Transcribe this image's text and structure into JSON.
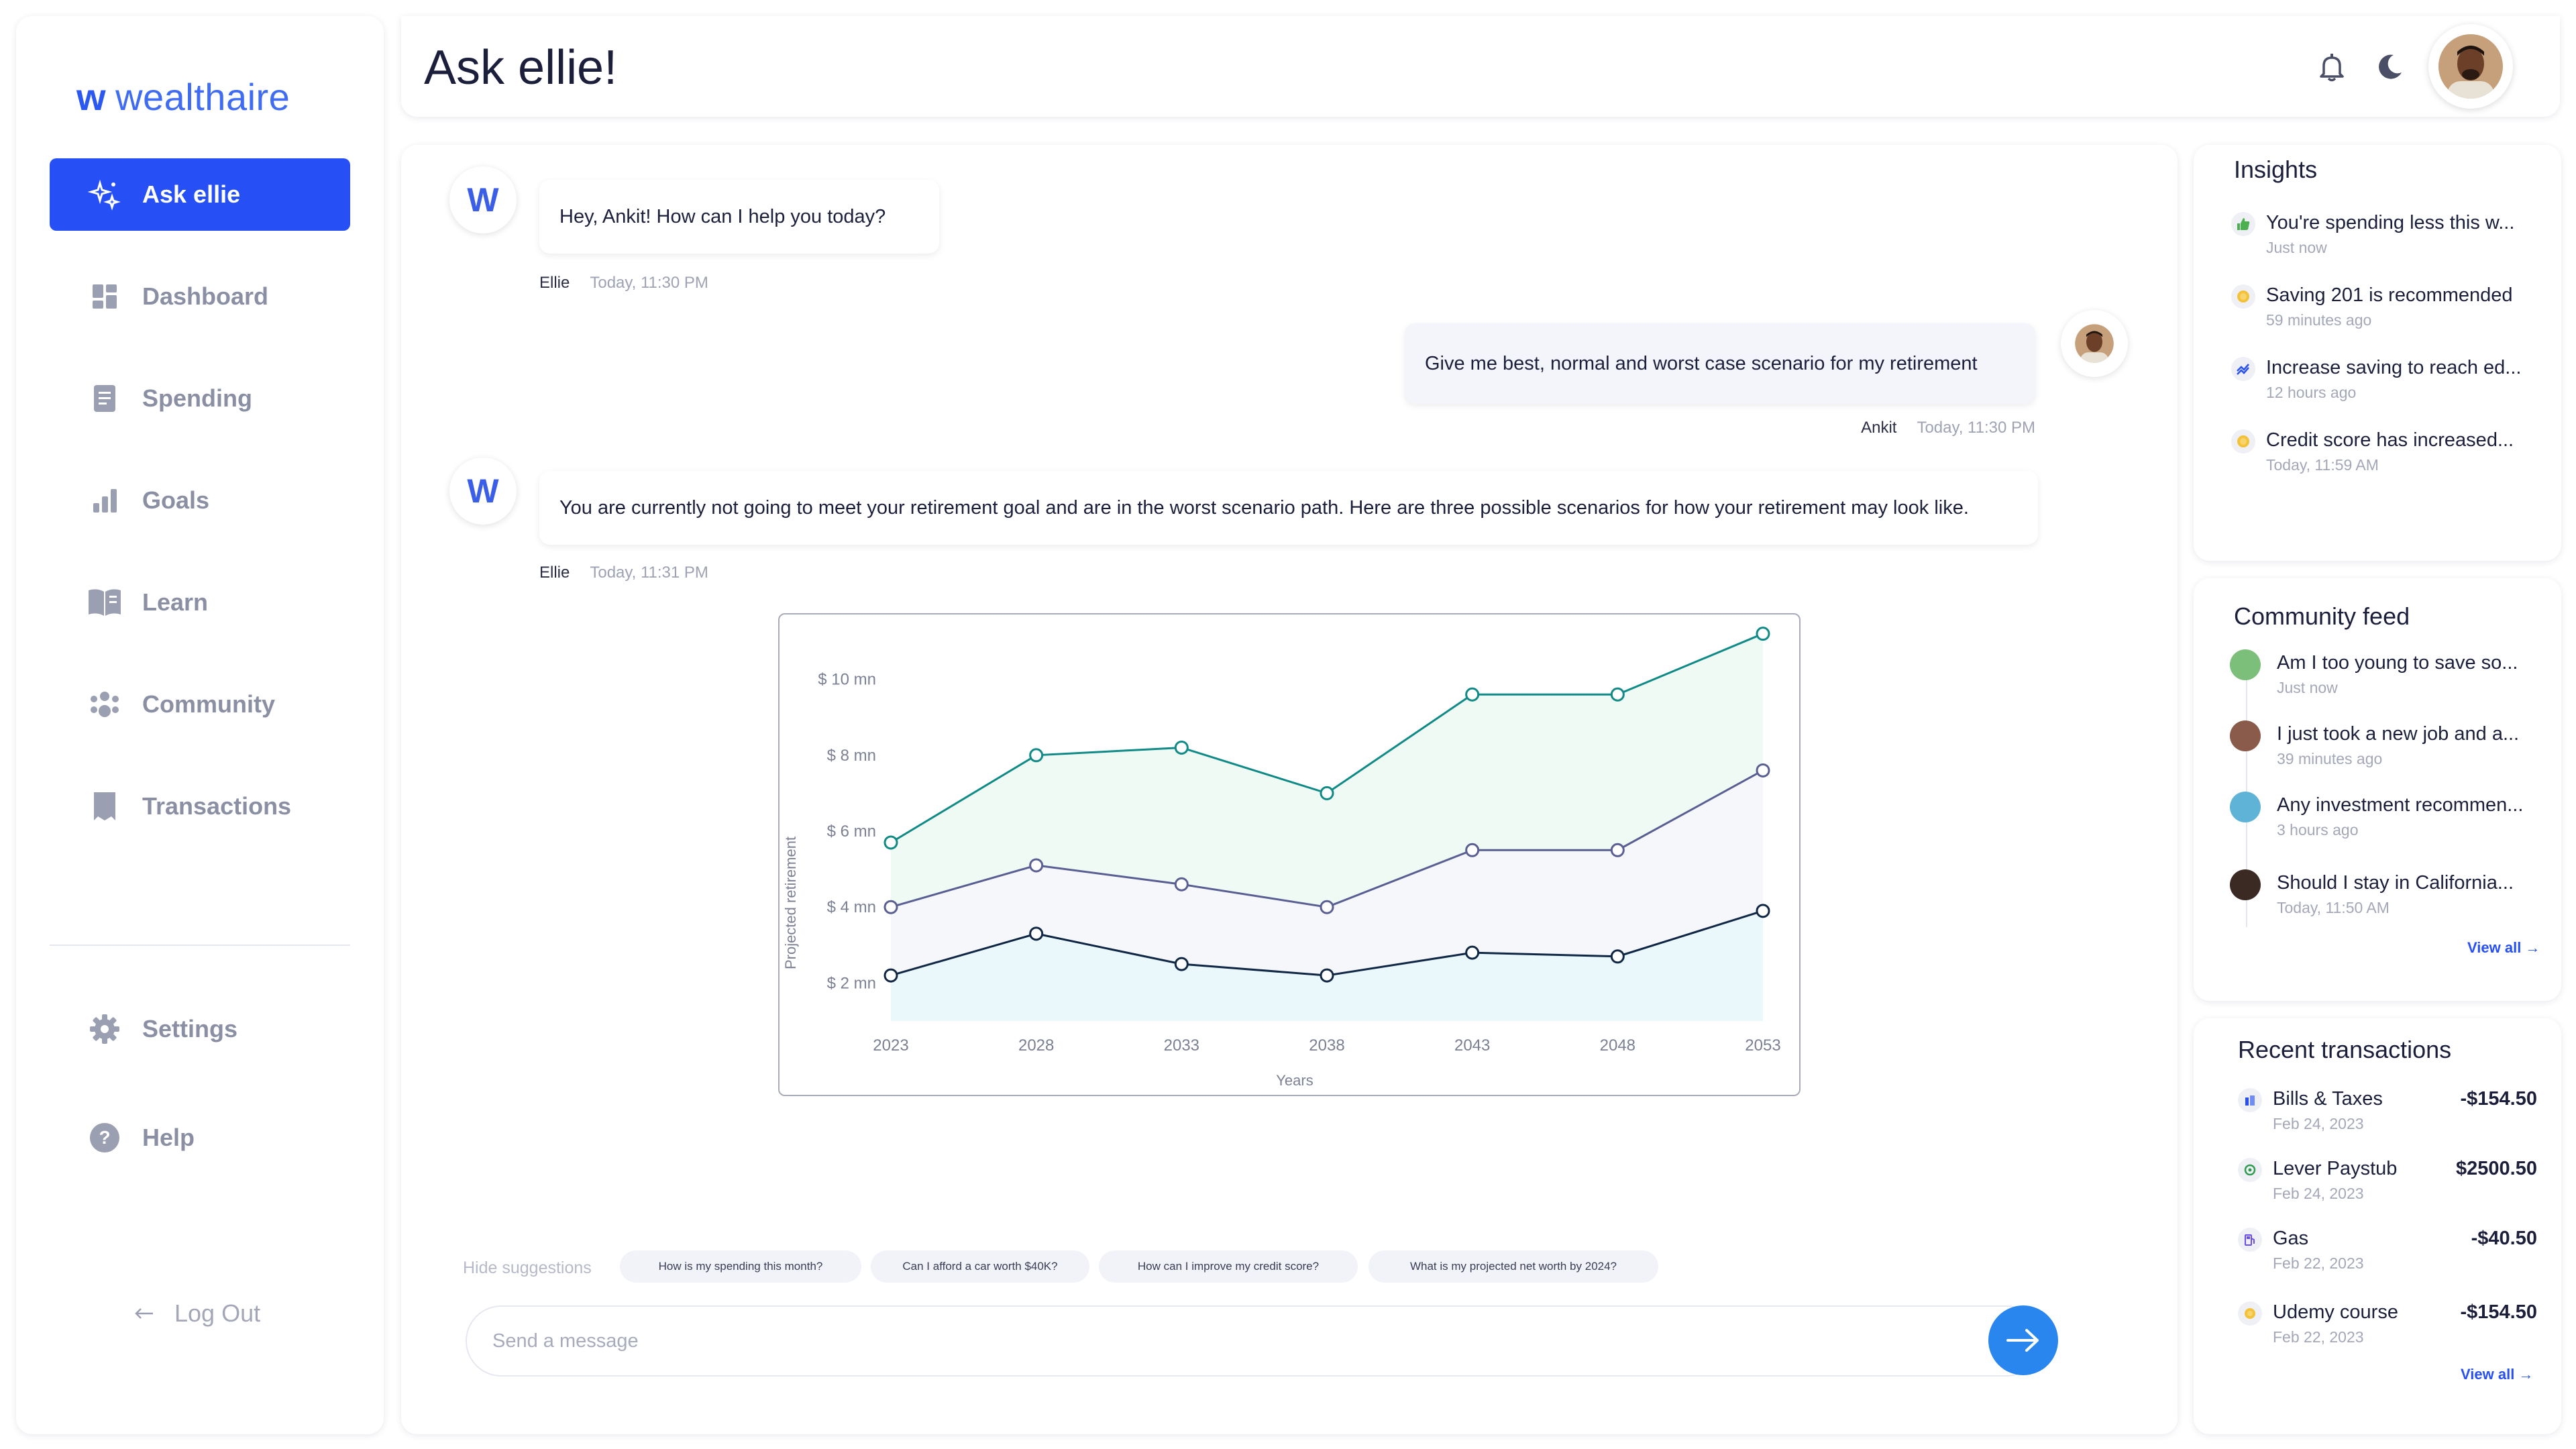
{
  "app": {
    "logo_mark": "w",
    "logo_name": "wealthaire"
  },
  "sidebar": {
    "items": [
      {
        "label": "Ask ellie",
        "icon": "sparkle-icon",
        "active": true
      },
      {
        "label": "Dashboard",
        "icon": "dashboard-icon"
      },
      {
        "label": "Spending",
        "icon": "document-icon"
      },
      {
        "label": "Goals",
        "icon": "bar-chart-icon"
      },
      {
        "label": "Learn",
        "icon": "book-icon"
      },
      {
        "label": "Community",
        "icon": "community-icon"
      },
      {
        "label": "Transactions",
        "icon": "receipt-icon"
      }
    ],
    "bottom": [
      {
        "label": "Settings",
        "icon": "gear-icon"
      },
      {
        "label": "Help",
        "icon": "help-icon"
      }
    ],
    "logout": "Log Out"
  },
  "header": {
    "title": "Ask ellie!"
  },
  "chat": {
    "messages": [
      {
        "from": "bot",
        "text": "Hey, Ankit! How can I help you today?",
        "author": "Ellie",
        "time": "Today, 11:30 PM"
      },
      {
        "from": "user",
        "text": "Give me best, normal and worst case scenario for my retirement",
        "author": "Ankit",
        "time": "Today, 11:30 PM"
      },
      {
        "from": "bot",
        "text": "You are currently not going to meet your retirement goal and are in the worst scenario path. Here are three possible scenarios for how your retirement may look like.",
        "author": "Ellie",
        "time": "Today, 11:31 PM"
      }
    ],
    "bot_avatar_letter": "W",
    "suggestions_label": "Hide suggestions",
    "suggestions": [
      "How is my spending this month?",
      "Can I afford a car worth $40K?",
      "How can I improve my credit score?",
      "What is my projected net worth by 2024?"
    ],
    "input_placeholder": "Send a message"
  },
  "chart_data": {
    "type": "area",
    "x": [
      2023,
      2028,
      2033,
      2038,
      2043,
      2048,
      2053
    ],
    "xlabel": "Years",
    "ylabel": "Projected retirement",
    "y_ticks": [
      2,
      4,
      6,
      8,
      10
    ],
    "y_tick_labels": [
      "$ 2 mn",
      "$ 4 mn",
      "$ 6 mn",
      "$ 8 mn",
      "$ 10 mn"
    ],
    "ylim": [
      1,
      11
    ],
    "series": [
      {
        "values": [
          5.7,
          8.0,
          8.2,
          7.0,
          9.6,
          9.6,
          11.2
        ],
        "color": "#0f8a86",
        "fill": "#eefaf3"
      },
      {
        "values": [
          4.0,
          5.1,
          4.6,
          4.0,
          5.5,
          5.5,
          7.6
        ],
        "color": "#5a5f93",
        "fill": "#f6f7fa"
      },
      {
        "values": [
          2.2,
          3.3,
          2.5,
          2.2,
          2.8,
          2.7,
          3.9
        ],
        "color": "#0f2744",
        "fill": "#eaf8fc"
      }
    ]
  },
  "insights": {
    "title": "Insights",
    "items": [
      {
        "text": "You're spending less this w...",
        "time": "Just now",
        "icon": "thumbs-up-icon",
        "color": "#4caf50"
      },
      {
        "text": "Saving 201 is recommended",
        "time": "59 minutes ago",
        "icon": "coin-icon",
        "color": "#f3c13a"
      },
      {
        "text": "Increase saving to reach ed...",
        "time": "12 hours ago",
        "icon": "trend-icon",
        "color": "#2650f5"
      },
      {
        "text": "Credit score has increased...",
        "time": "Today, 11:59 AM",
        "icon": "coin-icon",
        "color": "#f3c13a"
      }
    ]
  },
  "community": {
    "title": "Community feed",
    "items": [
      {
        "text": "Am I too young to save so...",
        "time": "Just now",
        "color": "#7cbf7a"
      },
      {
        "text": "I just took a new job and a...",
        "time": "39 minutes ago",
        "color": "#8a5a4a"
      },
      {
        "text": "Any investment recommen...",
        "time": "3 hours ago",
        "color": "#5fb3d6"
      },
      {
        "text": "Should I stay in California...",
        "time": "Today, 11:50 AM",
        "color": "#3b2a24"
      }
    ],
    "view_all": "View all →"
  },
  "transactions": {
    "title": "Recent transactions",
    "items": [
      {
        "name": "Bills & Taxes",
        "date": "Feb 24, 2023",
        "amount": "-$154.50",
        "icon": "bank-icon",
        "color": "#2650f5"
      },
      {
        "name": "Lever Paystub",
        "date": "Feb 24, 2023",
        "amount": "$2500.50",
        "icon": "money-icon",
        "color": "#2e9b4e"
      },
      {
        "name": "Gas",
        "date": "Feb 22, 2023",
        "amount": "-$40.50",
        "icon": "gas-pump-icon",
        "color": "#6a4df0"
      },
      {
        "name": "Udemy course",
        "date": "Feb 22, 2023",
        "amount": "-$154.50",
        "icon": "coin-icon",
        "color": "#f3c13a"
      }
    ],
    "view_all": "View all →"
  }
}
